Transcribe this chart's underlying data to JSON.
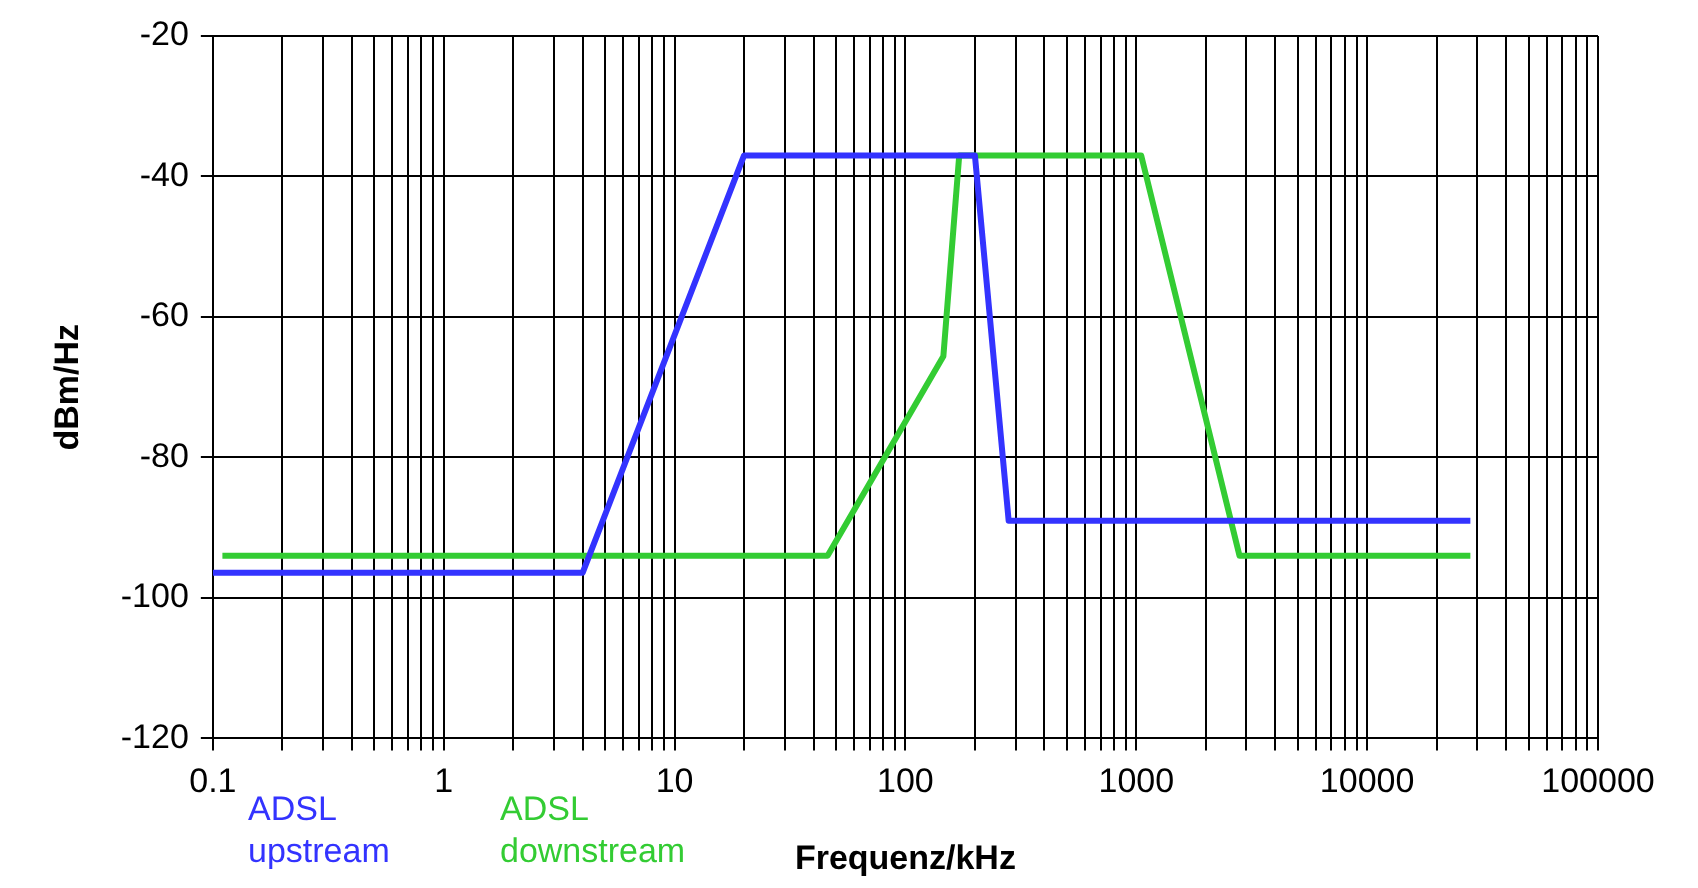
{
  "chart_data": {
    "type": "line",
    "xlabel": "Frequenz/kHz",
    "ylabel": "dBm/Hz",
    "log": "x",
    "grid": true,
    "legend": "bottom left",
    "marker": "none",
    "line_style": "solid",
    "xlim": [
      0.1,
      100000
    ],
    "xticks": [
      0.1,
      {
        "value": 0.2,
        "label": null
      },
      {
        "value": 0.3,
        "label": null
      },
      {
        "value": 0.4,
        "label": null
      },
      {
        "value": 0.5,
        "label": null
      },
      {
        "value": 0.6,
        "label": null
      },
      {
        "value": 0.7,
        "label": null
      },
      {
        "value": 0.8,
        "label": null
      },
      {
        "value": 0.9,
        "label": null
      },
      1,
      {
        "value": 2,
        "label": null
      },
      {
        "value": 3,
        "label": null
      },
      {
        "value": 4,
        "label": null
      },
      {
        "value": 5,
        "label": null
      },
      {
        "value": 6,
        "label": null
      },
      {
        "value": 7,
        "label": null
      },
      {
        "value": 8,
        "label": null
      },
      {
        "value": 9,
        "label": null
      },
      10,
      {
        "value": 20,
        "label": null
      },
      {
        "value": 30,
        "label": null
      },
      {
        "value": 40,
        "label": null
      },
      {
        "value": 50,
        "label": null
      },
      {
        "value": 60,
        "label": null
      },
      {
        "value": 70,
        "label": null
      },
      {
        "value": 80,
        "label": null
      },
      {
        "value": 90,
        "label": null
      },
      100,
      {
        "value": 200,
        "label": null
      },
      {
        "value": 300,
        "label": null
      },
      {
        "value": 400,
        "label": null
      },
      {
        "value": 500,
        "label": null
      },
      {
        "value": 600,
        "label": null
      },
      {
        "value": 700,
        "label": null
      },
      {
        "value": 800,
        "label": null
      },
      {
        "value": 900,
        "label": null
      },
      1000,
      {
        "value": 2000,
        "label": null
      },
      {
        "value": 3000,
        "label": null
      },
      {
        "value": 4000,
        "label": null
      },
      {
        "value": 5000,
        "label": null
      },
      {
        "value": 6000,
        "label": null
      },
      {
        "value": 7000,
        "label": null
      },
      {
        "value": 8000,
        "label": null
      },
      {
        "value": 9000,
        "label": null
      },
      10000,
      {
        "value": 20000,
        "label": null
      },
      {
        "value": 30000,
        "label": null
      },
      {
        "value": 40000,
        "label": null
      },
      {
        "value": 50000,
        "label": null
      },
      {
        "value": 60000,
        "label": null
      },
      {
        "value": 70000,
        "label": null
      },
      {
        "value": 80000,
        "label": null
      },
      {
        "value": 90000,
        "label": null
      },
      100000
    ],
    "ylim": [
      -120,
      -20
    ],
    "yticks": [
      -120,
      -100,
      -80,
      -60,
      -40,
      -20
    ],
    "series": [
      {
        "name": "ADSL upstream",
        "color": "#3333ff",
        "x": [
          0.1,
          4,
          20,
          200,
          280,
          28000
        ],
        "values": [
          -96.4,
          -96.4,
          -37,
          -37,
          -89,
          -89
        ]
      },
      {
        "name": "ADSL downstream",
        "color": "#33cc33",
        "x": [
          0.11,
          46,
          146,
          171,
          1050,
          2800,
          28000
        ],
        "values": [
          -94,
          -94,
          -65.6,
          -37,
          -37,
          -94,
          -94
        ]
      }
    ]
  }
}
